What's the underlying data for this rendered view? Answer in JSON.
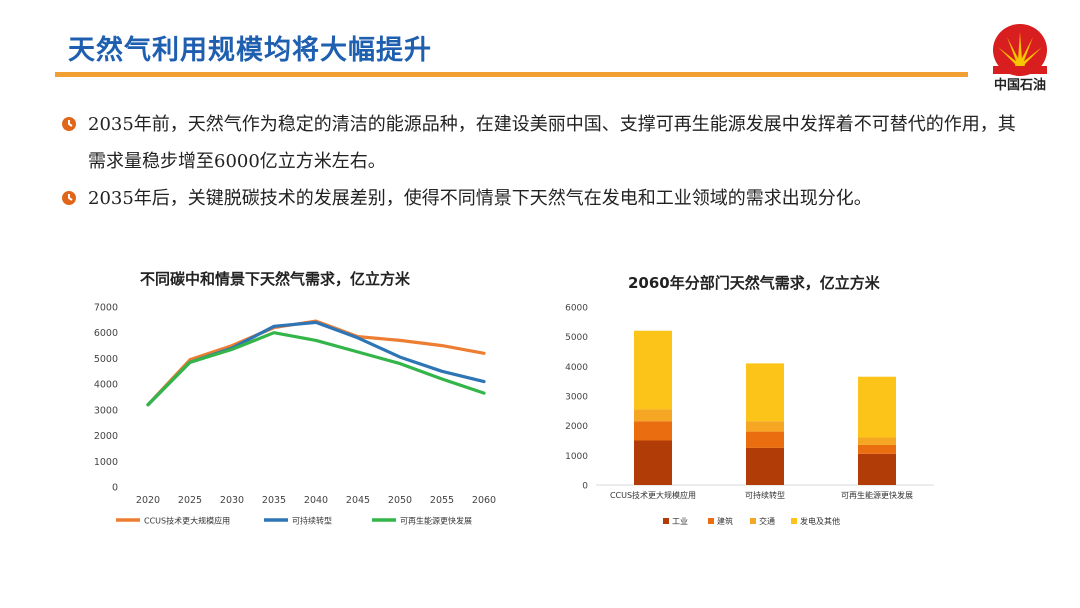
{
  "header": {
    "title": "天然气利用规模均将大幅提升",
    "brand_name": "中国石油",
    "accent_color": "#f2a033",
    "title_color": "#1f5fb0"
  },
  "bullets": [
    {
      "icon": "bullet-circle-icon",
      "text": "2035年前，天然气作为稳定的清洁的能源品种，在建设美丽中国、支撑可再生能源发展中发挥着不可替代的作用，其需求量稳步增至6000亿立方米左右。"
    },
    {
      "icon": "bullet-circle-icon",
      "text": "2035年后，关键脱碳技术的发展差别，使得不同情景下天然气在发电和工业领域的需求出现分化。"
    }
  ],
  "chart_data": [
    {
      "type": "line",
      "title": "不同碳中和情景下天然气需求，亿立方米",
      "x": [
        2020,
        2025,
        2030,
        2035,
        2040,
        2045,
        2050,
        2055,
        2060
      ],
      "ylim": [
        0,
        7000
      ],
      "yticks": [
        0,
        1000,
        2000,
        3000,
        4000,
        5000,
        6000,
        7000
      ],
      "grid": false,
      "legend": "bottom",
      "series": [
        {
          "name": "CCUS技术更大规模应用",
          "color": "#ed7d31",
          "values": [
            3200,
            4950,
            5500,
            6200,
            6450,
            5850,
            5700,
            5500,
            5200
          ]
        },
        {
          "name": "可持续转型",
          "color": "#2e75b6",
          "values": [
            3200,
            4850,
            5400,
            6250,
            6400,
            5800,
            5050,
            4500,
            4100
          ]
        },
        {
          "name": "可再生能源更快发展",
          "color": "#33b54a",
          "values": [
            3200,
            4850,
            5350,
            6000,
            5700,
            5250,
            4800,
            4200,
            3650
          ]
        }
      ]
    },
    {
      "type": "bar",
      "stacked": true,
      "title": "2060年分部门天然气需求，亿立方米",
      "categories": [
        "CCUS技术更大规模应用",
        "可持续转型",
        "可再生能源更快发展"
      ],
      "ylim": [
        0,
        6000
      ],
      "yticks": [
        0,
        1000,
        2000,
        3000,
        4000,
        5000,
        6000
      ],
      "grid": false,
      "legend": "bottom",
      "series": [
        {
          "name": "工业",
          "color": "#b23c08",
          "values": [
            1500,
            1250,
            1050
          ]
        },
        {
          "name": "建筑",
          "color": "#ea6e10",
          "values": [
            650,
            550,
            300
          ]
        },
        {
          "name": "交通",
          "color": "#f5a623",
          "values": [
            400,
            350,
            250
          ]
        },
        {
          "name": "发电及其他",
          "color": "#fcc419",
          "values": [
            2650,
            1950,
            2050
          ]
        }
      ]
    }
  ]
}
